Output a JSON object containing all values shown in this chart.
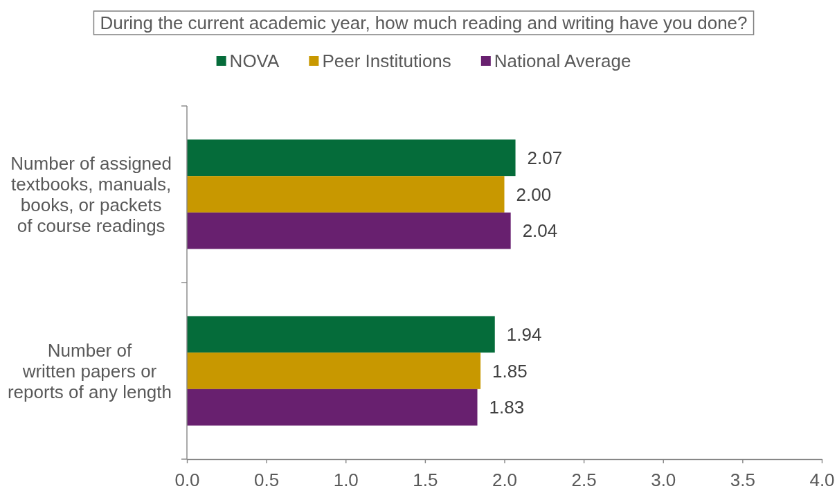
{
  "chart_data": {
    "type": "bar",
    "orientation": "horizontal",
    "title": "During the current academic year, how much reading and writing have you done?",
    "categories": [
      "Number of assigned\ntextbooks, manuals,\nbooks, or packets\nof course readings",
      "Number of\nwritten papers or\nreports of any length"
    ],
    "series": [
      {
        "name": "NOVA",
        "color": "#056c3a",
        "values": [
          2.07,
          1.94
        ],
        "value_labels": [
          "2.07",
          "1.94"
        ]
      },
      {
        "name": "Peer Institutions",
        "color": "#c89800",
        "values": [
          2.0,
          1.85
        ],
        "value_labels": [
          "2.00",
          "1.85"
        ]
      },
      {
        "name": "National Average",
        "color": "#68206f",
        "values": [
          2.04,
          1.83
        ],
        "value_labels": [
          "2.04",
          "1.83"
        ]
      }
    ],
    "xlim": [
      0,
      4
    ],
    "xticks": [
      {
        "value": 0,
        "label": "0.0"
      },
      0.5,
      {
        "value": 1,
        "label": "1.0"
      },
      1.5,
      {
        "value": 2,
        "label": "2.0"
      },
      2.5,
      {
        "value": 3,
        "label": "3.0"
      },
      3.5,
      {
        "value": 4,
        "label": "4.0"
      }
    ],
    "legend": "top"
  }
}
